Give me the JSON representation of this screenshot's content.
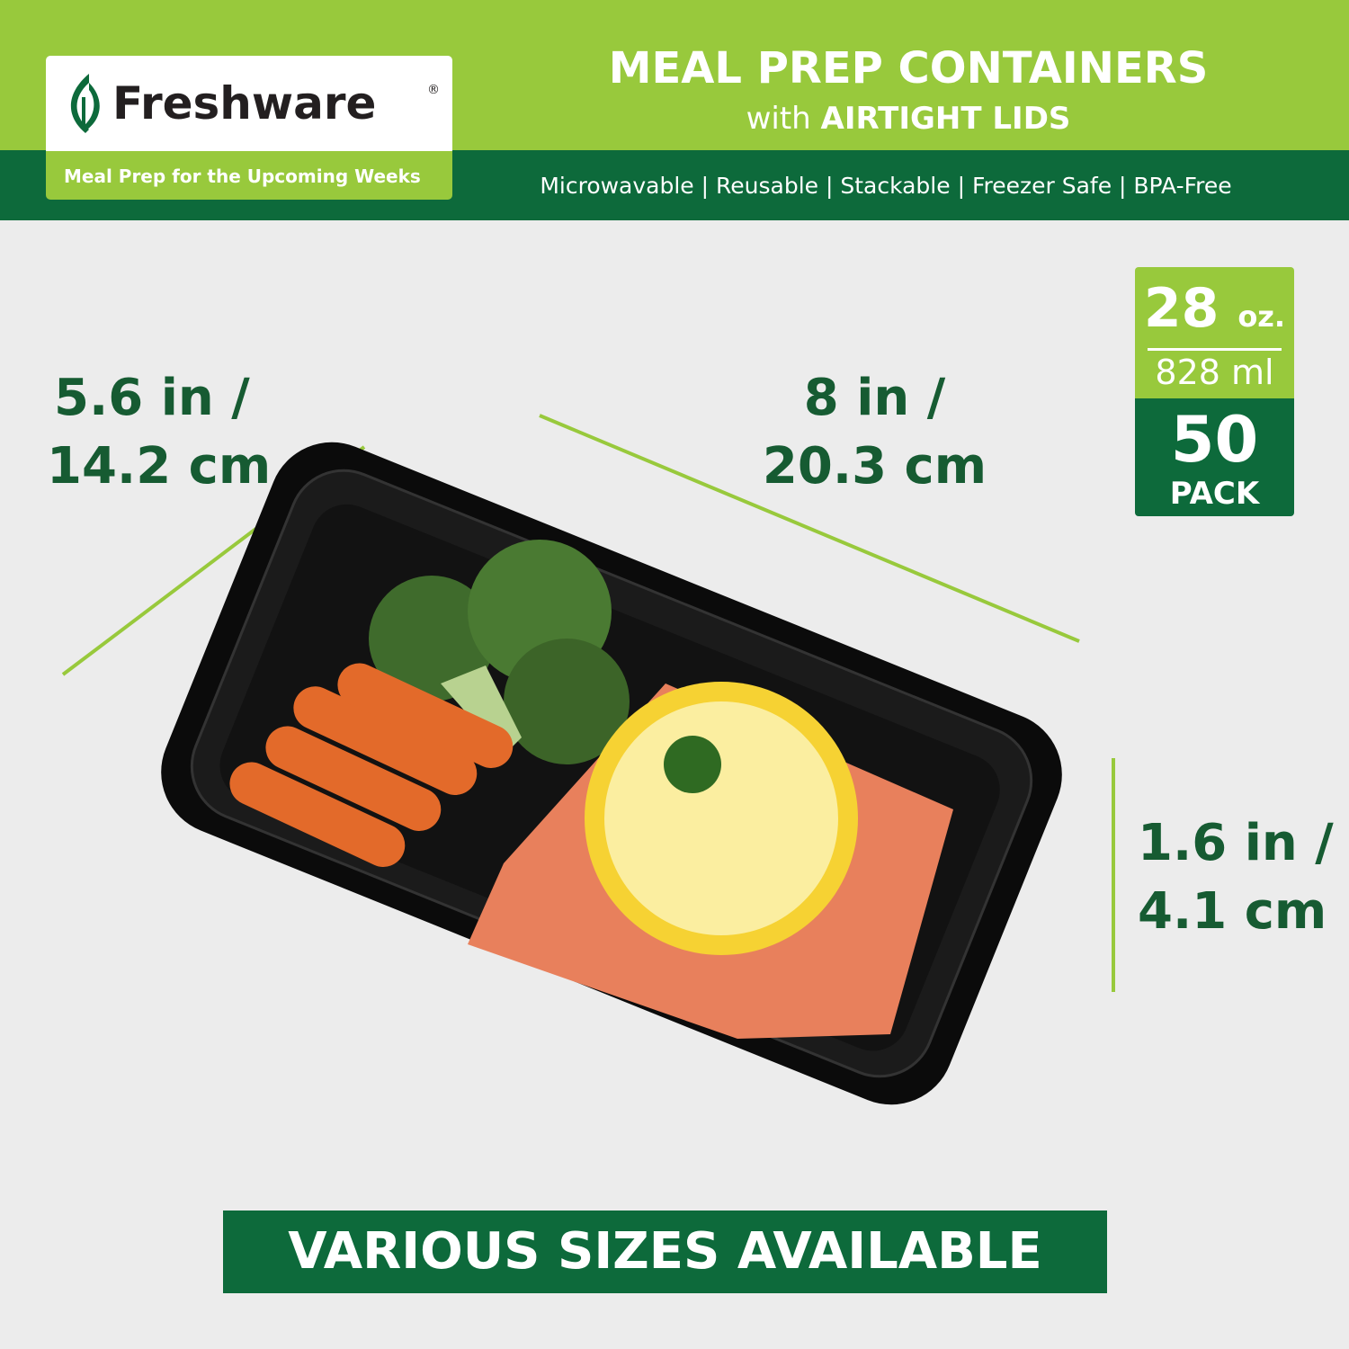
{
  "brand": {
    "name": "Freshware",
    "registered_mark": "®",
    "tagline": "Meal Prep for the Upcoming Weeks"
  },
  "header": {
    "title": "MEAL PREP CONTAINERS",
    "subtitle_prefix": "with",
    "subtitle_bold": "AIRTIGHT LIDS",
    "features": "Microwavable | Reusable | Stackable | Freezer Safe | BPA-Free"
  },
  "dimensions": {
    "width_line1": "5.6 in /",
    "width_line2": "14.2 cm",
    "length_line1": "8 in /",
    "length_line2": "20.3 cm",
    "height_line1": "1.6 in /",
    "height_line2": "4.1 cm"
  },
  "badge": {
    "capacity": "28",
    "capacity_unit": "oz.",
    "capacity_ml": "828 ml",
    "pack_count": "50",
    "pack_label": "PACK"
  },
  "banner": {
    "text": "VARIOUS SIZES AVAILABLE"
  },
  "colors": {
    "light_green": "#98c93c",
    "dark_green": "#0d6a3b",
    "text_green": "#165b32",
    "background": "#ececec"
  }
}
